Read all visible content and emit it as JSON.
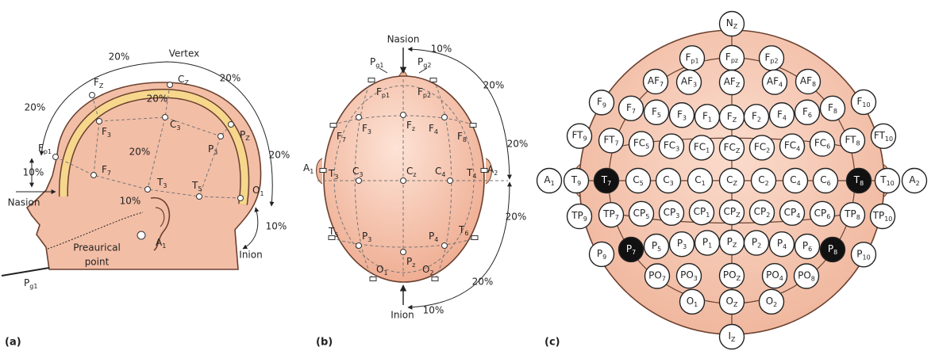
{
  "panels": [
    {
      "label": "(a)",
      "electrodes": [
        [
          "F",
          "Z"
        ],
        [
          "C",
          "Z"
        ],
        [
          "F",
          "p1"
        ],
        [
          "F",
          "3"
        ],
        [
          "C",
          "3"
        ],
        [
          "P",
          "3"
        ],
        [
          "P",
          "Z"
        ],
        [
          "F",
          "7"
        ],
        [
          "T",
          "3"
        ],
        [
          "T",
          "5"
        ],
        [
          "O",
          "1"
        ],
        [
          "A",
          "1"
        ],
        [
          "P",
          "g1"
        ]
      ],
      "annotations": [
        "Vertex",
        "20%",
        "20%",
        "20%",
        "20%",
        "20%",
        "20%",
        "10%",
        "10%",
        "10%",
        "Nasion",
        "Inion",
        "Preaurical",
        "point"
      ]
    },
    {
      "label": "(b)",
      "electrodes": [
        [
          "P",
          "g1"
        ],
        [
          "P",
          "g2"
        ],
        [
          "F",
          "p1"
        ],
        [
          "F",
          "p2"
        ],
        [
          "F",
          "7"
        ],
        [
          "F",
          "3"
        ],
        [
          "F",
          "z"
        ],
        [
          "F",
          "4"
        ],
        [
          "F",
          "8"
        ],
        [
          "A",
          "1"
        ],
        [
          "T",
          "3"
        ],
        [
          "C",
          "3"
        ],
        [
          "C",
          "z"
        ],
        [
          "C",
          "4"
        ],
        [
          "T",
          "4"
        ],
        [
          "A",
          "2"
        ],
        [
          "T",
          "5"
        ],
        [
          "P",
          "3"
        ],
        [
          "P",
          "z"
        ],
        [
          "P",
          "4"
        ],
        [
          "T",
          "6"
        ],
        [
          "O",
          "1"
        ],
        [
          "O",
          "2"
        ]
      ],
      "annotations": [
        "Nasion",
        "10%",
        "20%",
        "20%",
        "20%",
        "20%",
        "10%",
        "Inion"
      ]
    },
    {
      "label": "(c)",
      "rows": [
        [
          [
            "N",
            "Z"
          ]
        ],
        [
          [
            "F",
            "p1"
          ],
          [
            "F",
            "pz"
          ],
          [
            "F",
            "p2"
          ]
        ],
        [
          [
            "AF",
            "7"
          ],
          [
            "AF",
            "3"
          ],
          [
            "AF",
            "Z"
          ],
          [
            "AF",
            "4"
          ],
          [
            "AF",
            "8"
          ]
        ],
        [
          [
            "F",
            "9"
          ],
          [
            "F",
            "7"
          ],
          [
            "F",
            "5"
          ],
          [
            "F",
            "3"
          ],
          [
            "F",
            "1"
          ],
          [
            "F",
            "Z"
          ],
          [
            "F",
            "2"
          ],
          [
            "F",
            "4"
          ],
          [
            "F",
            "6"
          ],
          [
            "F",
            "8"
          ],
          [
            "F",
            "10"
          ]
        ],
        [
          [
            "FT",
            "9"
          ],
          [
            "FT",
            "7"
          ],
          [
            "FC",
            "5"
          ],
          [
            "FC",
            "3"
          ],
          [
            "FC",
            "1"
          ],
          [
            "FC",
            "Z"
          ],
          [
            "FC",
            "2"
          ],
          [
            "FC",
            "4"
          ],
          [
            "FC",
            "6"
          ],
          [
            "FT",
            "8"
          ],
          [
            "FT",
            "10"
          ]
        ],
        [
          [
            "A",
            "1"
          ],
          [
            "T",
            "9"
          ],
          [
            "T",
            "7"
          ],
          [
            "C",
            "5"
          ],
          [
            "C",
            "3"
          ],
          [
            "C",
            "1"
          ],
          [
            "C",
            "Z"
          ],
          [
            "C",
            "2"
          ],
          [
            "C",
            "4"
          ],
          [
            "C",
            "6"
          ],
          [
            "T",
            "8"
          ],
          [
            "T",
            "10"
          ],
          [
            "A",
            "2"
          ]
        ],
        [
          [
            "TP",
            "9"
          ],
          [
            "TP",
            "7"
          ],
          [
            "CP",
            "5"
          ],
          [
            "CP",
            "3"
          ],
          [
            "CP",
            "1"
          ],
          [
            "CP",
            "Z"
          ],
          [
            "CP",
            "2"
          ],
          [
            "CP",
            "4"
          ],
          [
            "CP",
            "6"
          ],
          [
            "TP",
            "8"
          ],
          [
            "TP",
            "10"
          ]
        ],
        [
          [
            "P",
            "9"
          ],
          [
            "P",
            "7"
          ],
          [
            "P",
            "5"
          ],
          [
            "P",
            "3"
          ],
          [
            "P",
            "1"
          ],
          [
            "P",
            "Z"
          ],
          [
            "P",
            "2"
          ],
          [
            "P",
            "4"
          ],
          [
            "P",
            "6"
          ],
          [
            "P",
            "8"
          ],
          [
            "P",
            "10"
          ]
        ],
        [
          [
            "PO",
            "7"
          ],
          [
            "PO",
            "3"
          ],
          [
            "PO",
            "Z"
          ],
          [
            "PO",
            "4"
          ],
          [
            "PO",
            "8"
          ]
        ],
        [
          [
            "O",
            "1"
          ],
          [
            "O",
            "Z"
          ],
          [
            "O",
            "2"
          ]
        ],
        [
          [
            "I",
            "Z"
          ]
        ]
      ]
    }
  ]
}
